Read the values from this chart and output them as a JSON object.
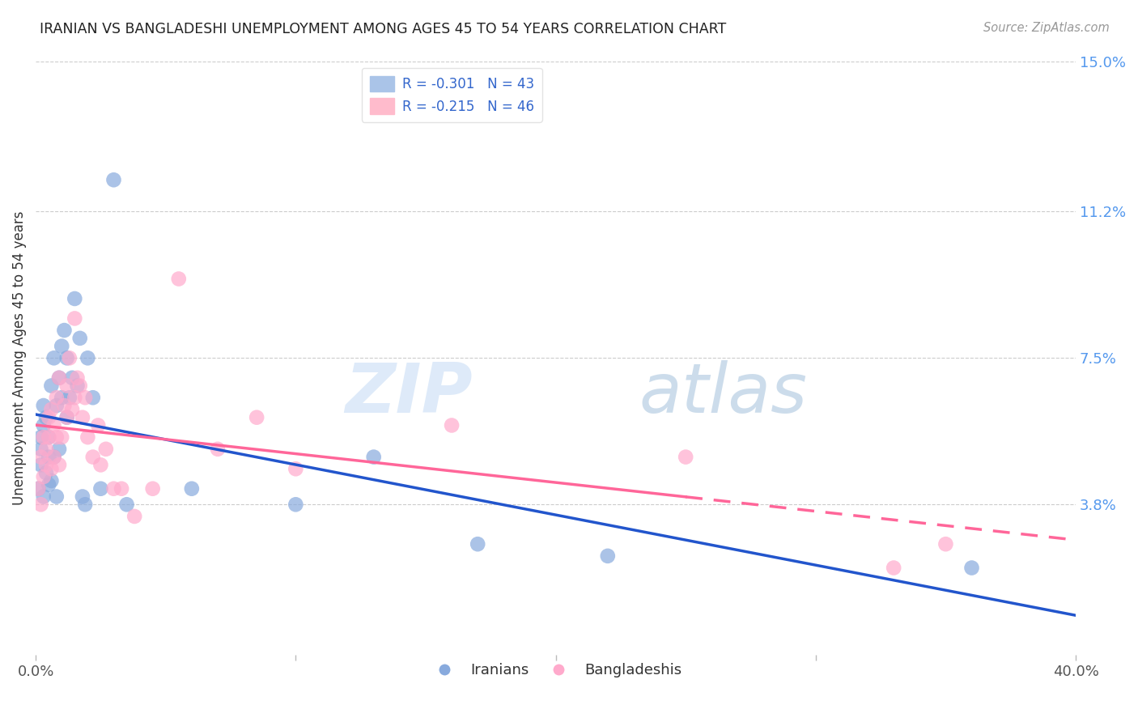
{
  "title": "IRANIAN VS BANGLADESHI UNEMPLOYMENT AMONG AGES 45 TO 54 YEARS CORRELATION CHART",
  "source": "Source: ZipAtlas.com",
  "ylabel": "Unemployment Among Ages 45 to 54 years",
  "xlim": [
    0.0,
    0.4
  ],
  "ylim": [
    0.0,
    0.15
  ],
  "yticks": [
    0.038,
    0.075,
    0.112,
    0.15
  ],
  "ytick_labels": [
    "3.8%",
    "7.5%",
    "11.2%",
    "15.0%"
  ],
  "xticks": [
    0.0,
    0.1,
    0.2,
    0.3,
    0.4
  ],
  "xtick_labels": [
    "0.0%",
    "",
    "",
    "",
    "40.0%"
  ],
  "legend1_label": "R = -0.301   N = 43",
  "legend2_label": "R = -0.215   N = 46",
  "legend_bottom_label1": "Iranians",
  "legend_bottom_label2": "Bangladeshis",
  "bg_color": "#ffffff",
  "grid_color": "#cccccc",
  "blue_color": "#88aadd",
  "pink_color": "#ffaacc",
  "line_blue": "#2255cc",
  "line_pink": "#ff6699",
  "iranians_x": [
    0.001,
    0.002,
    0.002,
    0.002,
    0.003,
    0.003,
    0.003,
    0.004,
    0.004,
    0.005,
    0.005,
    0.005,
    0.006,
    0.006,
    0.007,
    0.007,
    0.008,
    0.008,
    0.009,
    0.009,
    0.01,
    0.01,
    0.011,
    0.012,
    0.012,
    0.013,
    0.014,
    0.015,
    0.016,
    0.017,
    0.018,
    0.019,
    0.02,
    0.022,
    0.025,
    0.03,
    0.035,
    0.06,
    0.1,
    0.13,
    0.17,
    0.22,
    0.36
  ],
  "iranians_y": [
    0.042,
    0.055,
    0.048,
    0.052,
    0.04,
    0.058,
    0.063,
    0.06,
    0.046,
    0.05,
    0.043,
    0.055,
    0.044,
    0.068,
    0.05,
    0.075,
    0.063,
    0.04,
    0.07,
    0.052,
    0.065,
    0.078,
    0.082,
    0.075,
    0.06,
    0.065,
    0.07,
    0.09,
    0.068,
    0.08,
    0.04,
    0.038,
    0.075,
    0.065,
    0.042,
    0.12,
    0.038,
    0.042,
    0.038,
    0.05,
    0.028,
    0.025,
    0.022
  ],
  "bangladeshis_x": [
    0.001,
    0.002,
    0.002,
    0.003,
    0.003,
    0.004,
    0.004,
    0.005,
    0.005,
    0.006,
    0.006,
    0.007,
    0.007,
    0.008,
    0.008,
    0.009,
    0.009,
    0.01,
    0.011,
    0.012,
    0.012,
    0.013,
    0.014,
    0.015,
    0.015,
    0.016,
    0.017,
    0.018,
    0.019,
    0.02,
    0.022,
    0.024,
    0.025,
    0.027,
    0.03,
    0.033,
    0.038,
    0.045,
    0.055,
    0.07,
    0.085,
    0.1,
    0.16,
    0.25,
    0.33,
    0.35
  ],
  "bangladeshis_y": [
    0.042,
    0.05,
    0.038,
    0.055,
    0.045,
    0.052,
    0.048,
    0.055,
    0.06,
    0.047,
    0.062,
    0.05,
    0.058,
    0.055,
    0.065,
    0.048,
    0.07,
    0.055,
    0.063,
    0.06,
    0.068,
    0.075,
    0.062,
    0.085,
    0.065,
    0.07,
    0.068,
    0.06,
    0.065,
    0.055,
    0.05,
    0.058,
    0.048,
    0.052,
    0.042,
    0.042,
    0.035,
    0.042,
    0.095,
    0.052,
    0.06,
    0.047,
    0.058,
    0.05,
    0.022,
    0.028
  ],
  "watermark_zip": "ZIP",
  "watermark_atlas": "atlas"
}
